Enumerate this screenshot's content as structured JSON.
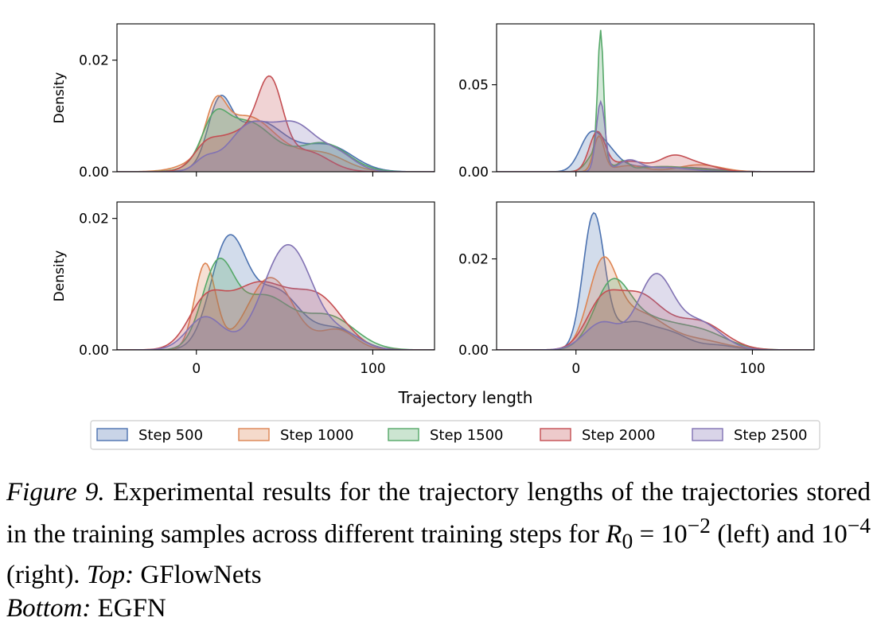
{
  "chart_data": {
    "type": "area",
    "subtype": "kde-density",
    "xlabel": "Trajectory length",
    "x_ticks": [
      "0",
      "100"
    ],
    "xlim": [
      -45,
      135
    ],
    "legend": {
      "placement": "bottom",
      "entries": [
        "Step 500",
        "Step 1000",
        "Step 1500",
        "Step 2000",
        "Step 2500"
      ]
    },
    "colors": {
      "Step 500": "#4c72b0",
      "Step 1000": "#dd8452",
      "Step 1500": "#55a868",
      "Step 2000": "#c44e52",
      "Step 2500": "#8172b3"
    },
    "panels": [
      {
        "id": "top-left",
        "ylabel": "Density",
        "ylim": [
          0,
          0.0265
        ],
        "y_ticks": [
          {
            "v": 0,
            "t": "0.00"
          },
          {
            "v": 0.02,
            "t": "0.02"
          }
        ],
        "series": [
          {
            "name": "Step 500",
            "components": [
              [
                0.01,
                13,
                6.5
              ],
              [
                0.009,
                35,
                16
              ],
              [
                0.0045,
                75,
                14
              ]
            ]
          },
          {
            "name": "Step 1000",
            "components": [
              [
                0.007,
                11,
                5.5
              ],
              [
                0.01,
                28,
                18
              ],
              [
                0.003,
                72,
                13
              ]
            ]
          },
          {
            "name": "Step 1500",
            "components": [
              [
                0.006,
                10,
                7
              ],
              [
                0.009,
                28,
                16
              ],
              [
                0.005,
                72,
                14
              ]
            ]
          },
          {
            "name": "Step 2000",
            "components": [
              [
                0.003,
                5,
                7
              ],
              [
                0.013,
                42,
                7
              ],
              [
                0.007,
                25,
                14
              ],
              [
                0.0035,
                63,
                12
              ]
            ]
          },
          {
            "name": "Step 2500",
            "components": [
              [
                0.002,
                5,
                6
              ],
              [
                0.008,
                30,
                12
              ],
              [
                0.008,
                56,
                12
              ],
              [
                0.003,
                80,
                10
              ]
            ]
          }
        ]
      },
      {
        "id": "top-right",
        "ylabel": "",
        "ylim": [
          0,
          0.085
        ],
        "y_ticks": [
          {
            "v": 0,
            "t": "0.00"
          },
          {
            "v": 0.05,
            "t": "0.05"
          }
        ],
        "series": [
          {
            "name": "Step 500",
            "components": [
              [
                0.02,
                8,
                6
              ],
              [
                0.01,
                18,
                6
              ],
              [
                0.0025,
                30,
                10
              ],
              [
                0.0025,
                60,
                18
              ]
            ]
          },
          {
            "name": "Step 1000",
            "components": [
              [
                0.02,
                13,
                3
              ],
              [
                0.0035,
                30,
                9
              ],
              [
                0.004,
                70,
                12
              ]
            ]
          },
          {
            "name": "Step 1500",
            "components": [
              [
                0.07,
                14,
                1.6
              ],
              [
                0.012,
                12,
                5
              ],
              [
                0.005,
                27,
                3
              ],
              [
                0.003,
                50,
                18
              ]
            ]
          },
          {
            "name": "Step 2000",
            "components": [
              [
                0.022,
                12,
                4.5
              ],
              [
                0.006,
                30,
                10
              ],
              [
                0.008,
                55,
                8
              ],
              [
                0.004,
                70,
                10
              ]
            ]
          },
          {
            "name": "Step 2500",
            "components": [
              [
                0.04,
                14,
                2.5
              ],
              [
                0.006,
                30,
                6
              ],
              [
                0.0025,
                50,
                14
              ]
            ]
          }
        ]
      },
      {
        "id": "bottom-left",
        "ylabel": "Density",
        "ylim": [
          0,
          0.0225
        ],
        "y_ticks": [
          {
            "v": 0,
            "t": "0.00"
          },
          {
            "v": 0.02,
            "t": "0.02"
          }
        ],
        "series": [
          {
            "name": "Step 500",
            "components": [
              [
                0.016,
                18,
                10
              ],
              [
                0.009,
                45,
                14
              ],
              [
                0.003,
                80,
                12
              ]
            ]
          },
          {
            "name": "Step 1000",
            "components": [
              [
                0.013,
                5,
                6
              ],
              [
                0.011,
                42,
                13
              ],
              [
                0.003,
                80,
                10
              ]
            ]
          },
          {
            "name": "Step 1500",
            "components": [
              [
                0.012,
                12,
                9
              ],
              [
                0.008,
                38,
                15
              ],
              [
                0.005,
                75,
                15
              ]
            ]
          },
          {
            "name": "Step 2000",
            "components": [
              [
                0.006,
                5,
                10
              ],
              [
                0.01,
                35,
                18
              ],
              [
                0.007,
                70,
                14
              ]
            ]
          },
          {
            "name": "Step 2500",
            "components": [
              [
                0.005,
                5,
                10
              ],
              [
                0.016,
                52,
                14
              ],
              [
                0.002,
                85,
                10
              ]
            ]
          }
        ]
      },
      {
        "id": "bottom-right",
        "ylabel": "",
        "ylim": [
          0,
          0.0325
        ],
        "y_ticks": [
          {
            "v": 0,
            "t": "0.00"
          },
          {
            "v": 0.02,
            "t": "0.02"
          }
        ],
        "series": [
          {
            "name": "Step 500",
            "components": [
              [
                0.029,
                10,
                6
              ],
              [
                0.006,
                32,
                12
              ],
              [
                0.003,
                55,
                10
              ],
              [
                0.001,
                80,
                10
              ]
            ]
          },
          {
            "name": "Step 1000",
            "components": [
              [
                0.017,
                15,
                8
              ],
              [
                0.008,
                35,
                15
              ],
              [
                0.002,
                70,
                15
              ]
            ]
          },
          {
            "name": "Step 1500",
            "components": [
              [
                0.013,
                20,
                10
              ],
              [
                0.006,
                40,
                15
              ],
              [
                0.004,
                70,
                15
              ]
            ]
          },
          {
            "name": "Step 2000",
            "components": [
              [
                0.008,
                14,
                9
              ],
              [
                0.012,
                35,
                14
              ],
              [
                0.006,
                70,
                14
              ]
            ]
          },
          {
            "name": "Step 2500",
            "components": [
              [
                0.006,
                15,
                10
              ],
              [
                0.016,
                45,
                10
              ],
              [
                0.006,
                70,
                12
              ]
            ]
          }
        ]
      }
    ]
  },
  "caption": {
    "label": "Figure 9.",
    "body": "Experimental results for the trajectory lengths of the trajectories stored in the training samples across different training steps for",
    "math_symbol": "R",
    "math_sub": "0",
    "math_eq": "=",
    "base_left": "10",
    "exp_left": "−2",
    "mid": "(left) and",
    "base_right": "10",
    "exp_right": "−4",
    "end": "(right).",
    "top_label": "Top:",
    "top_text": "GFlowNets",
    "bottom_label": "Bottom:",
    "bottom_text": "EGFN"
  }
}
